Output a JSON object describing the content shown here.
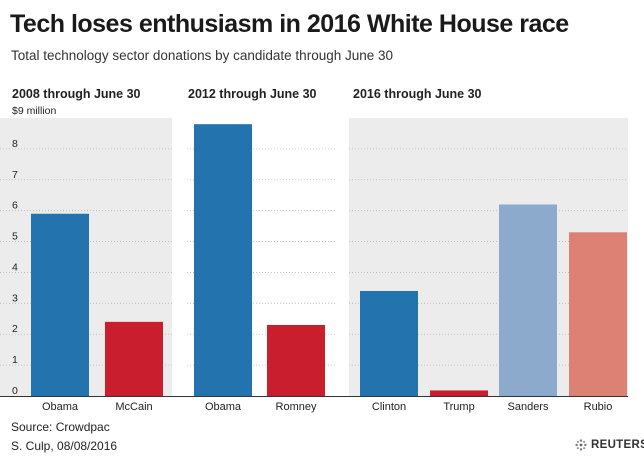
{
  "title": "Tech loses enthusiasm in 2016 White House race",
  "subtitle": "Total technology sector donations by candidate through June 30",
  "source": "Source: Crowdpac",
  "credit": "S. Culp, 08/08/2016",
  "brand": "REUTERS",
  "chart_data": {
    "type": "bar",
    "title": "Tech loses enthusiasm in 2016 White House race",
    "subtitle": "Total technology sector donations by candidate through June 30",
    "ylabel": "$9 million",
    "ylim": [
      0,
      9
    ],
    "yticks": [
      "0",
      "1",
      "2",
      "3",
      "4",
      "5",
      "6",
      "7",
      "8"
    ],
    "panels": [
      {
        "label": "2008 through June 30",
        "shaded": true,
        "bars": [
          {
            "name": "Obama",
            "value": 5.9,
            "color": "#2374ae"
          },
          {
            "name": "McCain",
            "value": 2.4,
            "color": "#c91e2e"
          }
        ]
      },
      {
        "label": "2012 through June 30",
        "shaded": false,
        "bars": [
          {
            "name": "Obama",
            "value": 8.8,
            "color": "#2374ae"
          },
          {
            "name": "Romney",
            "value": 2.3,
            "color": "#c91e2e"
          }
        ]
      },
      {
        "label": "2016 through June 30",
        "shaded": true,
        "bars": [
          {
            "name": "Clinton",
            "value": 3.4,
            "color": "#2374ae"
          },
          {
            "name": "Trump",
            "value": 0.18,
            "color": "#c91e2e"
          },
          {
            "name": "Sanders",
            "value": 6.2,
            "color": "#8baacc"
          },
          {
            "name": "Rubio",
            "value": 5.3,
            "color": "#dc8173"
          }
        ]
      }
    ]
  }
}
